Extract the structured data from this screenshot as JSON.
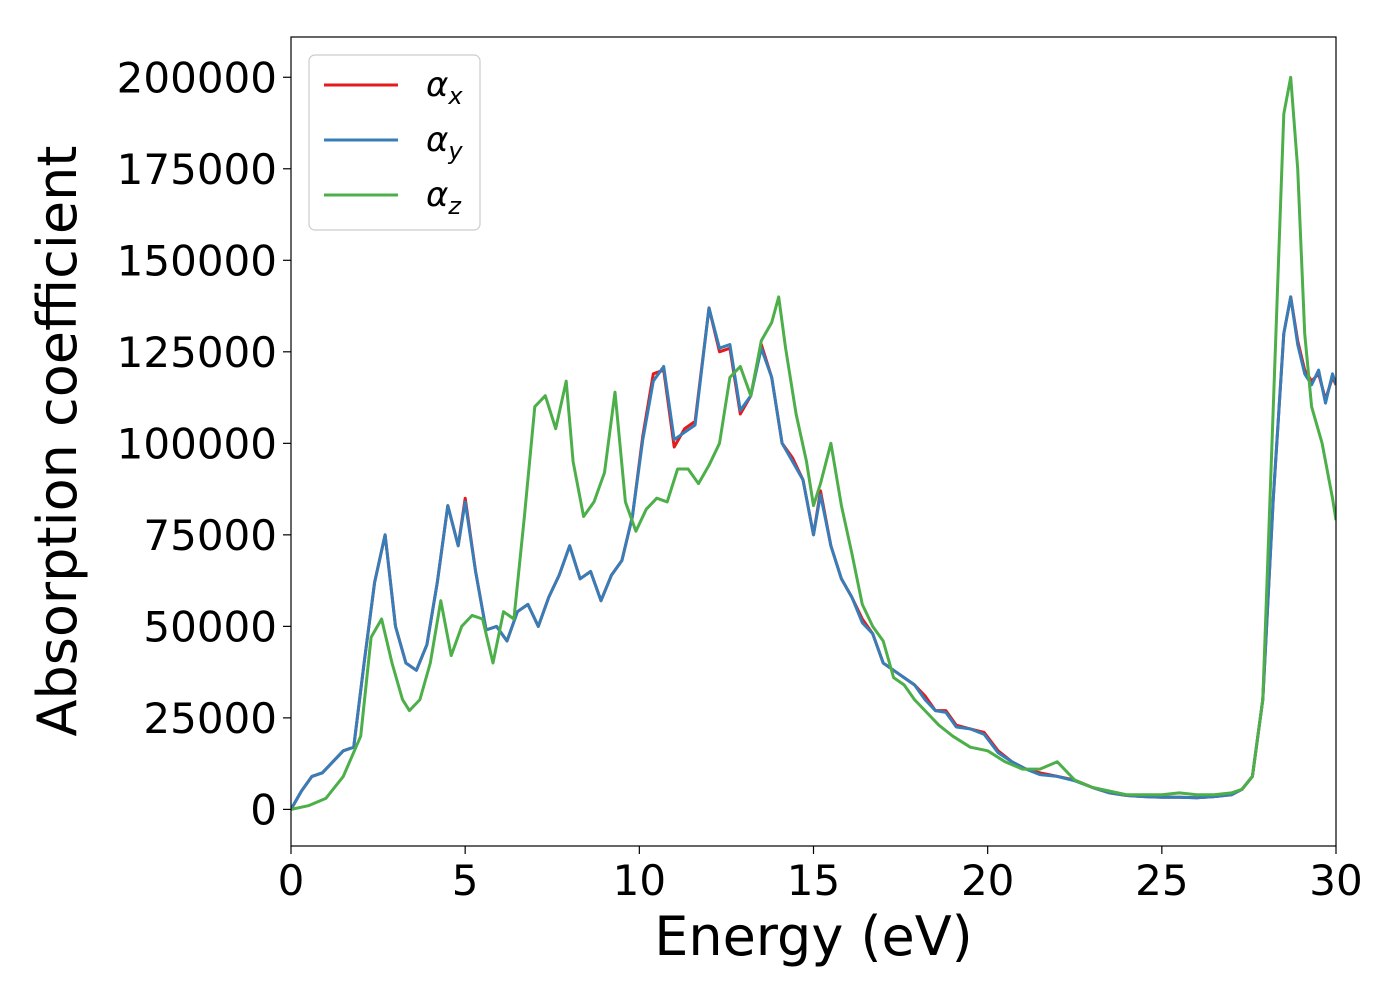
{
  "chart_data": {
    "type": "line",
    "xlabel": "Energy (eV)",
    "ylabel": "Absorption coefficient",
    "xlim": [
      0,
      30
    ],
    "ylim": [
      -10000,
      211000
    ],
    "x_ticks": [
      "0",
      "5",
      "10",
      "15",
      "20",
      "25",
      "30"
    ],
    "y_ticks": [
      "0",
      "25000",
      "50000",
      "75000",
      "100000",
      "125000",
      "150000",
      "175000",
      "200000"
    ],
    "grid": false,
    "legend_position": "top-left",
    "series": [
      {
        "name": "α_x",
        "symbol": "α",
        "subscript": "x",
        "color": "#e41a1c",
        "x": [
          0,
          0.3,
          0.6,
          0.9,
          1.2,
          1.5,
          1.8,
          2.1,
          2.4,
          2.7,
          3.0,
          3.3,
          3.6,
          3.9,
          4.2,
          4.5,
          4.8,
          5.0,
          5.3,
          5.6,
          5.9,
          6.2,
          6.5,
          6.8,
          7.1,
          7.4,
          7.7,
          8.0,
          8.3,
          8.6,
          8.9,
          9.2,
          9.5,
          9.8,
          10.1,
          10.4,
          10.7,
          11.0,
          11.3,
          11.6,
          12.0,
          12.3,
          12.6,
          12.9,
          13.2,
          13.5,
          13.8,
          14.1,
          14.4,
          14.7,
          15.0,
          15.2,
          15.5,
          15.8,
          16.1,
          16.4,
          16.7,
          17.0,
          17.3,
          17.6,
          17.9,
          18.2,
          18.5,
          18.8,
          19.1,
          19.5,
          19.9,
          20.3,
          20.7,
          21.1,
          21.5,
          22.0,
          22.5,
          23.0,
          23.5,
          24.0,
          24.5,
          25.0,
          25.5,
          26.0,
          26.5,
          27.0,
          27.3,
          27.6,
          27.9,
          28.2,
          28.5,
          28.7,
          28.9,
          29.1,
          29.3,
          29.5,
          29.7,
          29.9,
          30.0
        ],
        "values": [
          0,
          5000,
          9000,
          10000,
          13000,
          16000,
          17000,
          40000,
          62000,
          75000,
          50000,
          40000,
          38000,
          45000,
          62000,
          83000,
          72000,
          85000,
          65000,
          49000,
          50000,
          46000,
          54000,
          56000,
          50000,
          58000,
          64000,
          72000,
          63000,
          65000,
          57000,
          64000,
          68000,
          80000,
          102000,
          119000,
          120000,
          99000,
          104000,
          106000,
          137000,
          125000,
          126000,
          108000,
          113000,
          127000,
          118000,
          100000,
          96000,
          90000,
          75000,
          87000,
          72000,
          63000,
          58000,
          52000,
          48000,
          40000,
          38000,
          36000,
          34000,
          31000,
          27000,
          27000,
          23000,
          22000,
          21000,
          16000,
          13000,
          11000,
          10000,
          9000,
          8000,
          6000,
          4500,
          3800,
          3500,
          3300,
          3300,
          3200,
          3500,
          4000,
          5500,
          9000,
          30000,
          85000,
          130000,
          140000,
          128000,
          120000,
          117000,
          119000,
          112000,
          118000,
          116000
        ]
      },
      {
        "name": "α_y",
        "symbol": "α",
        "subscript": "y",
        "color": "#377eb8",
        "x": [
          0,
          0.3,
          0.6,
          0.9,
          1.2,
          1.5,
          1.8,
          2.1,
          2.4,
          2.7,
          3.0,
          3.3,
          3.6,
          3.9,
          4.2,
          4.5,
          4.8,
          5.0,
          5.3,
          5.6,
          5.9,
          6.2,
          6.5,
          6.8,
          7.1,
          7.4,
          7.7,
          8.0,
          8.3,
          8.6,
          8.9,
          9.2,
          9.5,
          9.8,
          10.1,
          10.4,
          10.7,
          11.0,
          11.3,
          11.6,
          12.0,
          12.3,
          12.6,
          12.9,
          13.2,
          13.5,
          13.8,
          14.1,
          14.4,
          14.7,
          15.0,
          15.2,
          15.5,
          15.8,
          16.1,
          16.4,
          16.7,
          17.0,
          17.3,
          17.6,
          17.9,
          18.2,
          18.5,
          18.8,
          19.1,
          19.5,
          19.9,
          20.3,
          20.7,
          21.1,
          21.5,
          22.0,
          22.5,
          23.0,
          23.5,
          24.0,
          24.5,
          25.0,
          25.5,
          26.0,
          26.5,
          27.0,
          27.3,
          27.6,
          27.9,
          28.2,
          28.5,
          28.7,
          28.9,
          29.1,
          29.3,
          29.5,
          29.7,
          29.9,
          30.0
        ],
        "values": [
          0,
          5000,
          9000,
          10000,
          13000,
          16000,
          17000,
          40000,
          62000,
          75000,
          50000,
          40000,
          38000,
          45000,
          62000,
          83000,
          72000,
          84000,
          65000,
          49000,
          50000,
          46000,
          54000,
          56000,
          50000,
          58000,
          64000,
          72000,
          63000,
          65000,
          57000,
          64000,
          68000,
          80000,
          101000,
          117000,
          121000,
          101000,
          103000,
          105000,
          137000,
          126000,
          127000,
          109000,
          113000,
          126000,
          118000,
          100000,
          95000,
          90000,
          75000,
          86000,
          72000,
          63000,
          58000,
          51000,
          48000,
          40000,
          38000,
          36000,
          34000,
          30000,
          27000,
          26500,
          22500,
          22000,
          20500,
          15500,
          13000,
          11000,
          9500,
          9000,
          7800,
          6000,
          4500,
          3800,
          3500,
          3300,
          3300,
          3200,
          3500,
          4000,
          5500,
          9000,
          30000,
          85000,
          130000,
          140000,
          127000,
          119000,
          116000,
          120000,
          111000,
          119000,
          116000
        ]
      },
      {
        "name": "α_z",
        "symbol": "α",
        "subscript": "z",
        "color": "#4daf4a",
        "x": [
          0,
          0.5,
          1.0,
          1.5,
          2.0,
          2.3,
          2.6,
          2.9,
          3.2,
          3.4,
          3.7,
          4.0,
          4.3,
          4.6,
          4.9,
          5.2,
          5.5,
          5.8,
          6.1,
          6.4,
          6.7,
          7.0,
          7.3,
          7.6,
          7.9,
          8.1,
          8.4,
          8.7,
          9.0,
          9.3,
          9.6,
          9.9,
          10.2,
          10.5,
          10.8,
          11.1,
          11.4,
          11.7,
          12.0,
          12.3,
          12.6,
          12.9,
          13.2,
          13.5,
          13.8,
          14.0,
          14.2,
          14.5,
          14.8,
          15.0,
          15.2,
          15.5,
          15.8,
          16.1,
          16.4,
          16.7,
          17.0,
          17.3,
          17.6,
          17.9,
          18.2,
          18.6,
          19.0,
          19.5,
          20.0,
          20.5,
          21.0,
          21.5,
          22.0,
          22.5,
          23.0,
          23.5,
          24.0,
          24.5,
          25.0,
          25.5,
          26.0,
          26.5,
          27.0,
          27.3,
          27.6,
          27.9,
          28.2,
          28.5,
          28.7,
          28.9,
          29.1,
          29.3,
          29.6,
          29.9,
          30.0
        ],
        "values": [
          0,
          1000,
          3000,
          9000,
          20000,
          47000,
          52000,
          40000,
          30000,
          27000,
          30000,
          40000,
          57000,
          42000,
          50000,
          53000,
          52000,
          40000,
          54000,
          52000,
          80000,
          110000,
          113000,
          104000,
          117000,
          95000,
          80000,
          84000,
          92000,
          114000,
          84000,
          76000,
          82000,
          85000,
          84000,
          93000,
          93000,
          89000,
          94000,
          100000,
          118000,
          121000,
          113000,
          128000,
          133000,
          140000,
          126000,
          108000,
          95000,
          83000,
          89000,
          100000,
          83000,
          70000,
          56000,
          50000,
          46000,
          36000,
          34000,
          30000,
          27000,
          23000,
          20000,
          17000,
          16000,
          13000,
          11000,
          11000,
          13000,
          8000,
          6000,
          5000,
          4000,
          4000,
          4000,
          4500,
          4000,
          4000,
          4500,
          5500,
          9000,
          30000,
          110000,
          190000,
          200000,
          175000,
          130000,
          110000,
          100000,
          85000,
          79000
        ]
      }
    ]
  }
}
